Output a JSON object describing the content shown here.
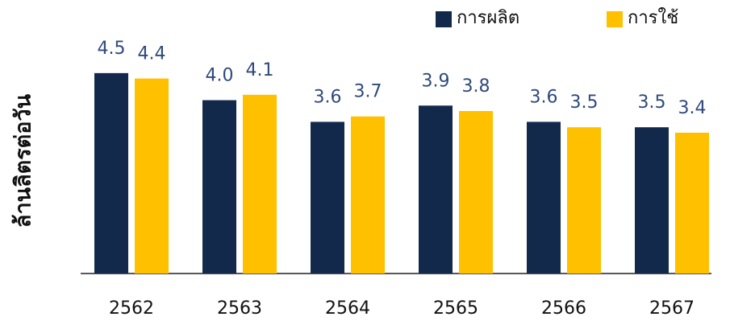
{
  "chart_data": {
    "type": "bar",
    "y_label": "ล้านลิตรต่อวัน",
    "categories": [
      "2562",
      "2563",
      "2564",
      "2565",
      "2566",
      "2567"
    ],
    "series": [
      {
        "name": "การผลิต",
        "color": "#13294b",
        "values": [
          4.5,
          4.0,
          3.6,
          3.9,
          3.6,
          3.5
        ],
        "value_labels": [
          "4.5",
          "4.0",
          "3.6",
          "3.9",
          "3.6",
          "3.5"
        ]
      },
      {
        "name": "การใช้",
        "color": "#ffc000",
        "values": [
          4.4,
          4.1,
          3.7,
          3.8,
          3.5,
          3.4
        ],
        "value_labels": [
          "4.4",
          "4.1",
          "3.7",
          "3.8",
          "3.5",
          "3.4"
        ]
      }
    ],
    "ylim": [
      0.8,
      5.3
    ],
    "legend": "top-right"
  }
}
